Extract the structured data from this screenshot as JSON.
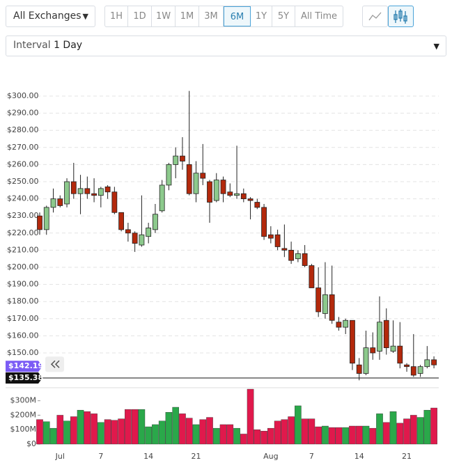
{
  "toolbar": {
    "exchange": "All Exchanges",
    "ranges": [
      "1H",
      "1D",
      "1W",
      "1M",
      "3M",
      "6M",
      "1Y",
      "5Y",
      "All Time"
    ],
    "range_widths": null,
    "active_range_index": 5,
    "interval_label": "Interval",
    "interval_value": "1 Day"
  },
  "chart_data": {
    "type": "candlestick",
    "categories": [
      null,
      null,
      null,
      "Jul",
      null,
      null,
      null,
      null,
      null,
      "7",
      null,
      null,
      null,
      null,
      null,
      null,
      "14",
      null,
      null,
      null,
      null,
      null,
      null,
      "21",
      null,
      null,
      null,
      null,
      null,
      null,
      null,
      null,
      null,
      null,
      "Aug",
      null,
      null,
      null,
      null,
      null,
      "7",
      null,
      null,
      null,
      null,
      null,
      null,
      "14",
      null,
      null,
      null,
      null,
      null,
      null,
      "21",
      null,
      null,
      null,
      null
    ],
    "open": [
      230,
      222,
      235,
      240,
      237,
      250,
      243,
      246,
      243,
      242,
      247,
      244,
      232,
      222,
      220,
      213,
      218,
      222,
      233,
      248,
      260,
      265,
      260,
      243,
      255,
      250,
      239,
      251,
      244,
      242,
      243,
      240,
      238,
      235,
      219,
      219,
      211,
      210,
      205,
      208,
      201,
      188,
      173,
      184,
      168,
      165,
      169,
      143,
      138,
      153,
      151,
      169,
      151,
      154,
      143,
      142,
      138,
      142,
      146
    ],
    "high": [
      232,
      236,
      246,
      242,
      252,
      261,
      254,
      253,
      252,
      247,
      248,
      247,
      232,
      226,
      221,
      242,
      226,
      237,
      251,
      261,
      270,
      276,
      303,
      262,
      272,
      251,
      255,
      253,
      249,
      271,
      246,
      241,
      240,
      237,
      224,
      222,
      225,
      215,
      210,
      213,
      202,
      200,
      203,
      201,
      171,
      170,
      169,
      147,
      163,
      162,
      183,
      176,
      169,
      168,
      144,
      161,
      143,
      154,
      148
    ],
    "low": [
      219,
      219,
      232,
      235,
      235,
      240,
      231,
      240,
      238,
      235,
      240,
      231,
      221,
      215,
      209,
      212,
      214,
      220,
      232,
      245,
      252,
      257,
      242,
      238,
      248,
      226,
      238,
      238,
      241,
      240,
      238,
      228,
      234,
      216,
      214,
      210,
      206,
      202,
      203,
      200,
      188,
      171,
      170,
      167,
      163,
      161,
      140,
      134,
      137,
      146,
      146,
      149,
      150,
      141,
      139,
      136,
      136,
      141,
      141
    ],
    "close": [
      222,
      235,
      240,
      236,
      250,
      243,
      246,
      243,
      242,
      246,
      244,
      232,
      222,
      220,
      214,
      219,
      223,
      231,
      248,
      260,
      265,
      262,
      243,
      255,
      252,
      238,
      251,
      243,
      242,
      243,
      240,
      239,
      235,
      218,
      217,
      212,
      210,
      204,
      208,
      201,
      188,
      174,
      184,
      169,
      165,
      169,
      144,
      138,
      153,
      150,
      168,
      153,
      154,
      144,
      142,
      137,
      142,
      146,
      143
    ],
    "up_color": "#8cc98c",
    "down_color": "#b3290c",
    "ylim": [
      133,
      307
    ],
    "yticks": [
      {
        "value": 150,
        "label": "$150.00"
      },
      {
        "value": 160,
        "label": "$160.00"
      },
      {
        "value": 170,
        "label": "$170.00"
      },
      {
        "value": 180,
        "label": "$180.00"
      },
      {
        "value": 190,
        "label": "$190.00"
      },
      {
        "value": 200,
        "label": "$200.00"
      },
      {
        "value": 210,
        "label": "$210.00"
      },
      {
        "value": 220,
        "label": "$220.00"
      },
      {
        "value": 230,
        "label": "$230.00"
      },
      {
        "value": 240,
        "label": "$240.00"
      },
      {
        "value": 250,
        "label": "$250.00"
      },
      {
        "value": 260,
        "label": "$260.00"
      },
      {
        "value": 270,
        "label": "$270.00"
      },
      {
        "value": 280,
        "label": "$280.00"
      },
      {
        "value": 290,
        "label": "$290.00"
      },
      {
        "value": 300,
        "label": "$300.00"
      }
    ],
    "grid": true,
    "current_price": {
      "value": 142.19,
      "label": "$142.19",
      "color": "#7b5cf5"
    },
    "reference_price": {
      "value": 135.38,
      "label": "$135.38",
      "color": "#111111"
    },
    "volume": {
      "values": [
        170000000,
        155000000,
        110000000,
        200000000,
        160000000,
        190000000,
        235000000,
        225000000,
        210000000,
        150000000,
        170000000,
        165000000,
        175000000,
        240000000,
        240000000,
        240000000,
        120000000,
        135000000,
        160000000,
        220000000,
        255000000,
        210000000,
        180000000,
        135000000,
        170000000,
        185000000,
        110000000,
        135000000,
        135000000,
        110000000,
        70000000,
        380000000,
        100000000,
        90000000,
        110000000,
        160000000,
        170000000,
        190000000,
        265000000,
        175000000,
        175000000,
        120000000,
        125000000,
        115000000,
        115000000,
        115000000,
        125000000,
        125000000,
        125000000,
        110000000,
        210000000,
        150000000,
        225000000,
        145000000,
        175000000,
        200000000,
        185000000,
        235000000,
        250000000
      ],
      "up_color": "#2aa84a",
      "down_color": "#e0194c",
      "ylim": [
        0,
        385000000
      ],
      "yticks": [
        {
          "value": 0,
          "label": "$0"
        },
        {
          "value": 100000000,
          "label": "$100M"
        },
        {
          "value": 200000000,
          "label": "$200M"
        },
        {
          "value": 300000000,
          "label": "$300M"
        }
      ]
    }
  }
}
